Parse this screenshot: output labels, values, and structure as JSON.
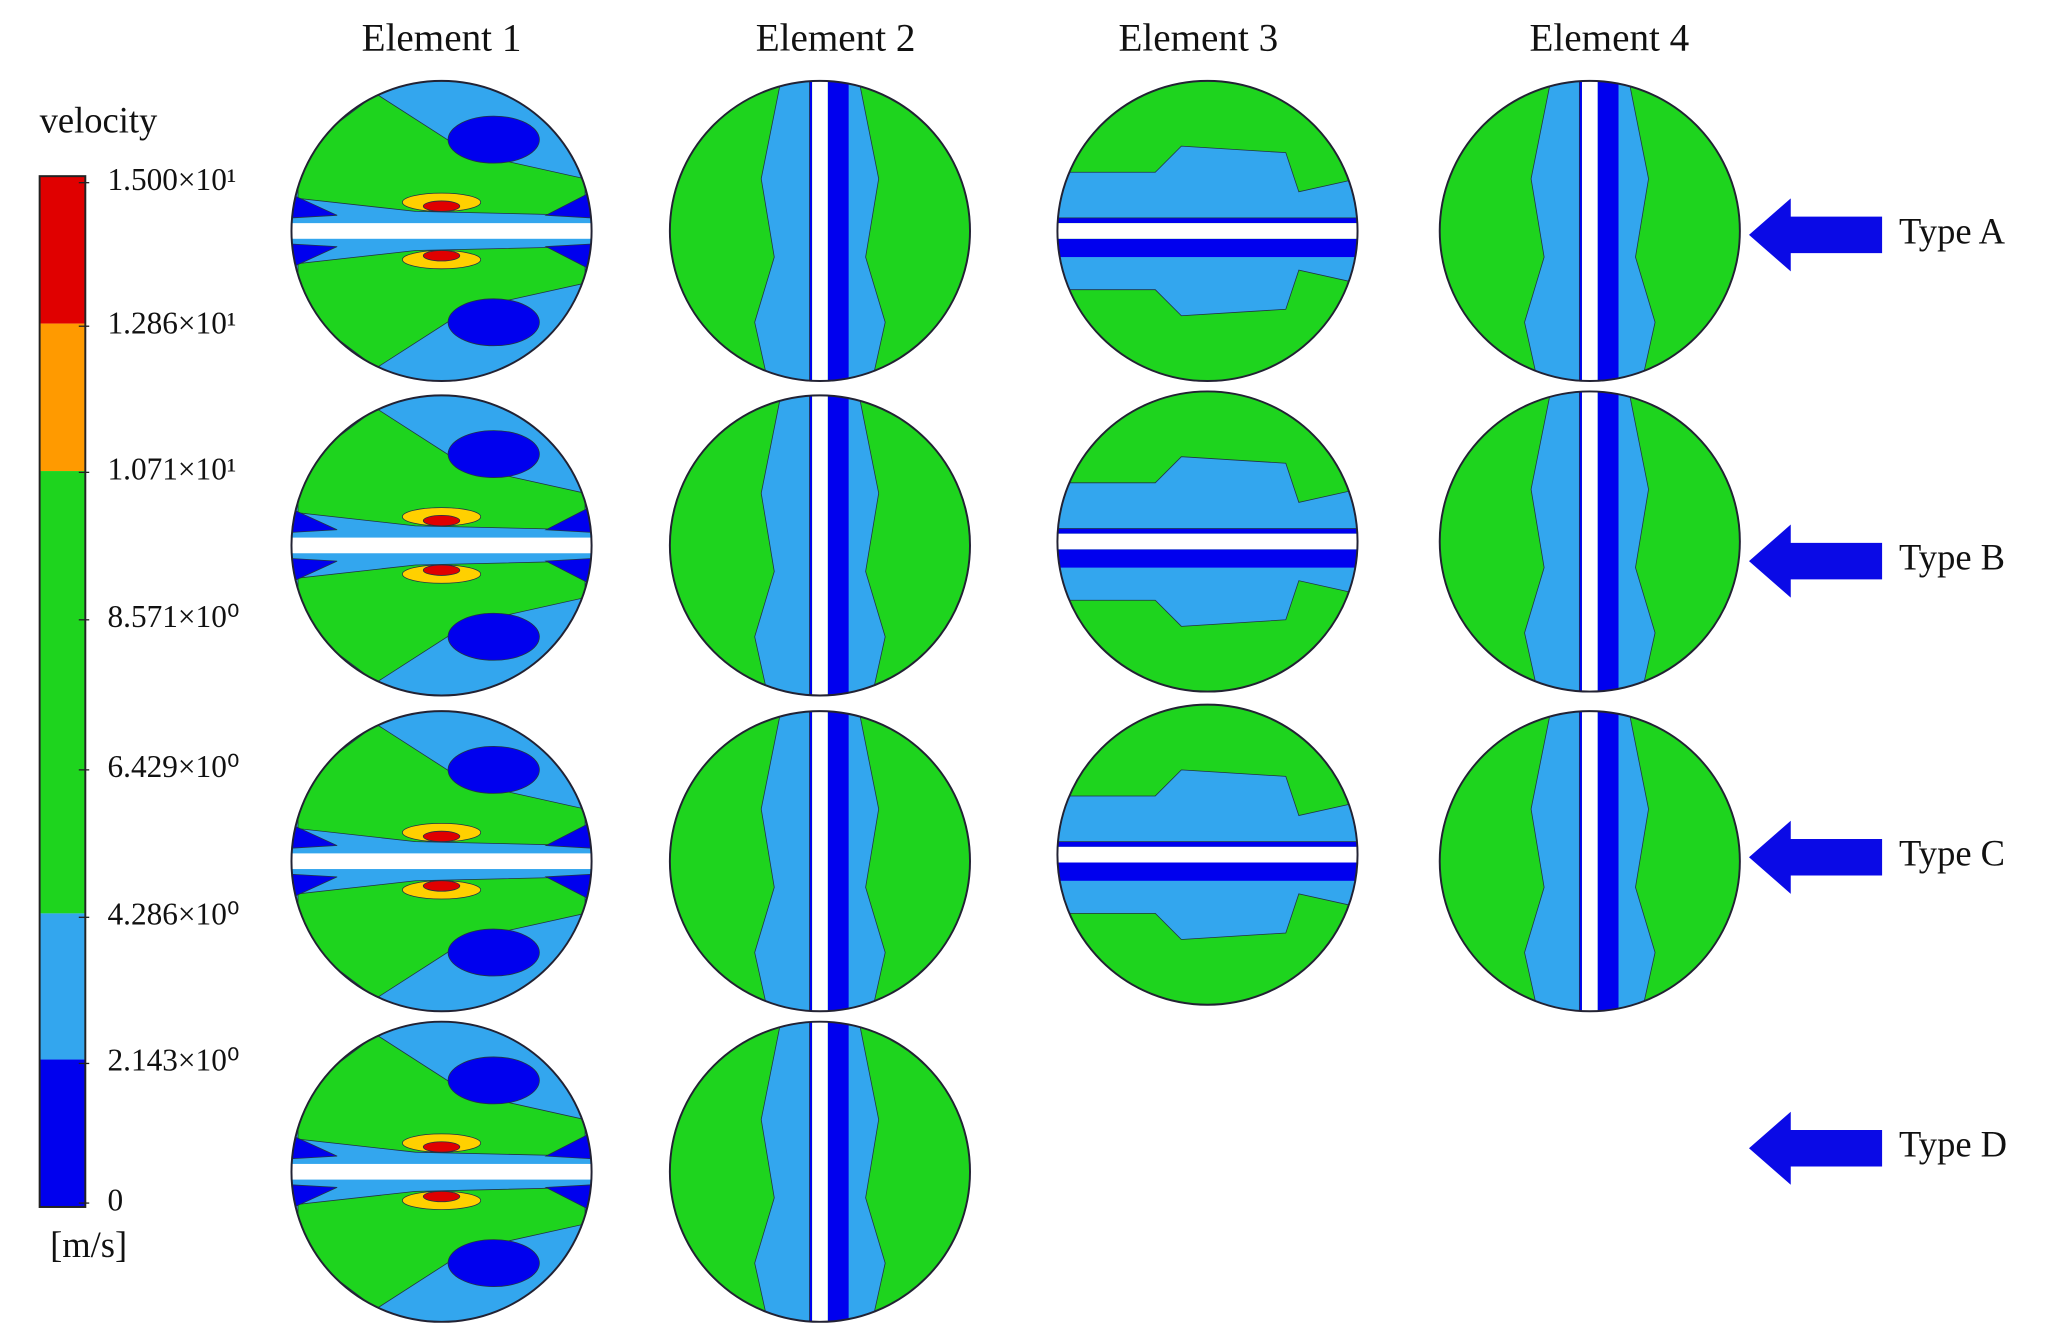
{
  "column_headers": [
    "Element 1",
    "Element 2",
    "Element 3",
    "Element 4"
  ],
  "row_labels": [
    "Type A",
    "Type B",
    "Type C",
    "Type D"
  ],
  "colorbar": {
    "title": "velocity",
    "unit": "[m/s]",
    "tick_labels": [
      "1.500×10¹",
      "1.286×10¹",
      "1.071×10¹",
      "8.571×10⁰",
      "6.429×10⁰",
      "4.286×10⁰",
      "2.143×10⁰",
      "0"
    ]
  }
}
